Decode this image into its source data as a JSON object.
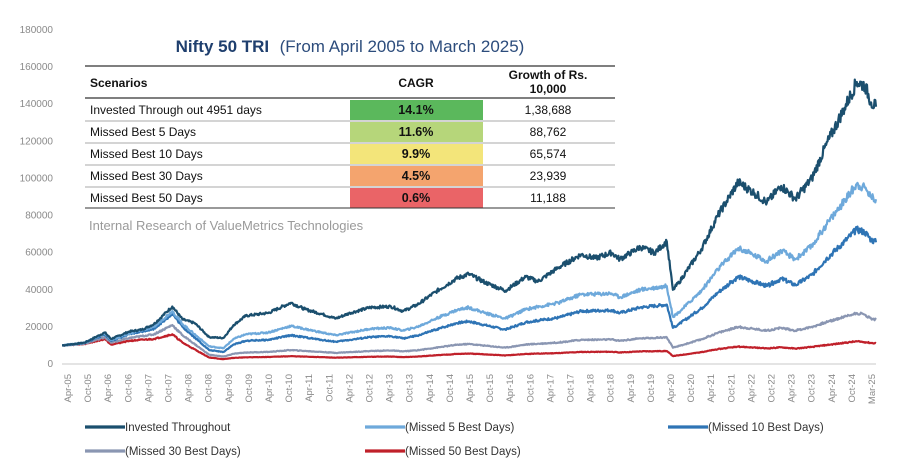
{
  "chart_data": {
    "type": "line",
    "title_main": "Nifty 50 TRI",
    "title_sub": "(From April 2005 to March 2025)",
    "ylim": [
      0,
      180000
    ],
    "yticks": [
      "0",
      "20000",
      "40000",
      "60000",
      "80000",
      "100000",
      "120000",
      "140000",
      "160000",
      "180000"
    ],
    "ytick_values": [
      0,
      20000,
      40000,
      60000,
      80000,
      100000,
      120000,
      140000,
      160000,
      180000
    ],
    "xtick_labels": [
      "Apr-05",
      "Oct-05",
      "Apr-06",
      "Oct-06",
      "Apr-07",
      "Oct-07",
      "Apr-08",
      "Oct-08",
      "Apr-09",
      "Oct-09",
      "Apr-10",
      "Oct-10",
      "Apr-11",
      "Oct-11",
      "Apr-12",
      "Oct-12",
      "Apr-13",
      "Oct-13",
      "Apr-14",
      "Oct-14",
      "Apr-15",
      "Oct-15",
      "Apr-16",
      "Oct-16",
      "Apr-17",
      "Oct-17",
      "Apr-18",
      "Oct-18",
      "Apr-19",
      "Oct-19",
      "Apr-20",
      "Oct-20",
      "Apr-21",
      "Oct-21",
      "Apr-22",
      "Oct-22",
      "Apr-23",
      "Oct-23",
      "Apr-24",
      "Oct-24",
      "Mar-25"
    ],
    "x_years": [
      2005.25,
      2025.17
    ],
    "series": [
      {
        "name": "Invested Throughout",
        "color": "#1b4f6e",
        "points": [
          [
            2005.25,
            10000
          ],
          [
            2005.8,
            11500
          ],
          [
            2006.3,
            17000
          ],
          [
            2006.45,
            13500
          ],
          [
            2006.9,
            17500
          ],
          [
            2007.2,
            18500
          ],
          [
            2007.5,
            21500
          ],
          [
            2007.95,
            31000
          ],
          [
            2008.2,
            24000
          ],
          [
            2008.5,
            22000
          ],
          [
            2008.85,
            14500
          ],
          [
            2009.2,
            14000
          ],
          [
            2009.45,
            21000
          ],
          [
            2009.75,
            26000
          ],
          [
            2010.3,
            27500
          ],
          [
            2010.85,
            33000
          ],
          [
            2011.2,
            29500
          ],
          [
            2011.6,
            27000
          ],
          [
            2011.95,
            24500
          ],
          [
            2012.3,
            27500
          ],
          [
            2012.8,
            30500
          ],
          [
            2013.3,
            31000
          ],
          [
            2013.6,
            28500
          ],
          [
            2013.95,
            32000
          ],
          [
            2014.4,
            39000
          ],
          [
            2014.9,
            46000
          ],
          [
            2015.2,
            48500
          ],
          [
            2015.6,
            44000
          ],
          [
            2016.1,
            39500
          ],
          [
            2016.6,
            47000
          ],
          [
            2016.9,
            44500
          ],
          [
            2017.4,
            52000
          ],
          [
            2017.95,
            59000
          ],
          [
            2018.3,
            57000
          ],
          [
            2018.7,
            60000
          ],
          [
            2018.9,
            56500
          ],
          [
            2019.4,
            63000
          ],
          [
            2019.75,
            60000
          ],
          [
            2020.05,
            66000
          ],
          [
            2020.2,
            40000
          ],
          [
            2020.35,
            44000
          ],
          [
            2020.9,
            62000
          ],
          [
            2021.3,
            80000
          ],
          [
            2021.8,
            98000
          ],
          [
            2022.2,
            92000
          ],
          [
            2022.5,
            87000
          ],
          [
            2022.85,
            96000
          ],
          [
            2023.2,
            89000
          ],
          [
            2023.6,
            100000
          ],
          [
            2023.95,
            118000
          ],
          [
            2024.4,
            138000
          ],
          [
            2024.7,
            152000
          ],
          [
            2024.9,
            150000
          ],
          [
            2025.05,
            141000
          ],
          [
            2025.17,
            138688
          ]
        ]
      },
      {
        "name": "(Missed 5 Best Days)",
        "color": "#6ea9db",
        "points": [
          [
            2005.25,
            10000
          ],
          [
            2005.8,
            11500
          ],
          [
            2006.3,
            16500
          ],
          [
            2006.45,
            13000
          ],
          [
            2006.9,
            16500
          ],
          [
            2007.5,
            20000
          ],
          [
            2007.95,
            28500
          ],
          [
            2008.2,
            21500
          ],
          [
            2008.85,
            9500
          ],
          [
            2009.2,
            8500
          ],
          [
            2009.45,
            13500
          ],
          [
            2009.75,
            16000
          ],
          [
            2010.3,
            17000
          ],
          [
            2010.85,
            20500
          ],
          [
            2011.6,
            17000
          ],
          [
            2011.95,
            15500
          ],
          [
            2012.8,
            19000
          ],
          [
            2013.3,
            19500
          ],
          [
            2013.6,
            18000
          ],
          [
            2013.95,
            20000
          ],
          [
            2014.4,
            24500
          ],
          [
            2014.9,
            29000
          ],
          [
            2015.2,
            30500
          ],
          [
            2015.6,
            27500
          ],
          [
            2016.1,
            24500
          ],
          [
            2016.6,
            29500
          ],
          [
            2017.4,
            33000
          ],
          [
            2017.95,
            37500
          ],
          [
            2018.7,
            38000
          ],
          [
            2018.9,
            36000
          ],
          [
            2019.4,
            40000
          ],
          [
            2020.05,
            42000
          ],
          [
            2020.2,
            25500
          ],
          [
            2020.35,
            28000
          ],
          [
            2020.9,
            39500
          ],
          [
            2021.3,
            51000
          ],
          [
            2021.8,
            62500
          ],
          [
            2022.5,
            55500
          ],
          [
            2022.85,
            61000
          ],
          [
            2023.2,
            56500
          ],
          [
            2023.6,
            63500
          ],
          [
            2023.95,
            75000
          ],
          [
            2024.4,
            88000
          ],
          [
            2024.7,
            97000
          ],
          [
            2024.9,
            95000
          ],
          [
            2025.05,
            90000
          ],
          [
            2025.17,
            88762
          ]
        ]
      },
      {
        "name": "(Missed 10 Best Days)",
        "color": "#2e74b5",
        "points": [
          [
            2005.25,
            10000
          ],
          [
            2005.8,
            11300
          ],
          [
            2006.3,
            16000
          ],
          [
            2006.45,
            12500
          ],
          [
            2006.9,
            16000
          ],
          [
            2007.5,
            19000
          ],
          [
            2007.95,
            27000
          ],
          [
            2008.2,
            20000
          ],
          [
            2008.85,
            7500
          ],
          [
            2009.2,
            6500
          ],
          [
            2009.45,
            10500
          ],
          [
            2009.75,
            12500
          ],
          [
            2010.3,
            13000
          ],
          [
            2010.85,
            15500
          ],
          [
            2011.6,
            13000
          ],
          [
            2011.95,
            12000
          ],
          [
            2012.8,
            14500
          ],
          [
            2013.3,
            15000
          ],
          [
            2013.6,
            13800
          ],
          [
            2013.95,
            15300
          ],
          [
            2014.4,
            18500
          ],
          [
            2014.9,
            22000
          ],
          [
            2015.2,
            23000
          ],
          [
            2015.6,
            21000
          ],
          [
            2016.1,
            18500
          ],
          [
            2016.6,
            22500
          ],
          [
            2017.4,
            25000
          ],
          [
            2017.95,
            28500
          ],
          [
            2018.7,
            29000
          ],
          [
            2018.9,
            27500
          ],
          [
            2019.4,
            30500
          ],
          [
            2020.05,
            32000
          ],
          [
            2020.2,
            19500
          ],
          [
            2020.35,
            21500
          ],
          [
            2020.9,
            30000
          ],
          [
            2021.3,
            38500
          ],
          [
            2021.8,
            47000
          ],
          [
            2022.5,
            42000
          ],
          [
            2022.85,
            46000
          ],
          [
            2023.2,
            42500
          ],
          [
            2023.6,
            48000
          ],
          [
            2023.95,
            56500
          ],
          [
            2024.4,
            66000
          ],
          [
            2024.7,
            72500
          ],
          [
            2024.9,
            71000
          ],
          [
            2025.05,
            67000
          ],
          [
            2025.17,
            65574
          ]
        ]
      },
      {
        "name": "(Missed 30 Best Days)",
        "color": "#8a96b2",
        "points": [
          [
            2005.25,
            10000
          ],
          [
            2005.8,
            11000
          ],
          [
            2006.3,
            14500
          ],
          [
            2006.45,
            11500
          ],
          [
            2006.9,
            14000
          ],
          [
            2007.5,
            16000
          ],
          [
            2007.95,
            21000
          ],
          [
            2008.2,
            15500
          ],
          [
            2008.85,
            5000
          ],
          [
            2009.2,
            4000
          ],
          [
            2009.45,
            5500
          ],
          [
            2009.75,
            6200
          ],
          [
            2010.3,
            6500
          ],
          [
            2010.85,
            7500
          ],
          [
            2011.6,
            6500
          ],
          [
            2011.95,
            6000
          ],
          [
            2012.8,
            7000
          ],
          [
            2013.3,
            7300
          ],
          [
            2013.6,
            6800
          ],
          [
            2013.95,
            7400
          ],
          [
            2014.4,
            8800
          ],
          [
            2014.9,
            10300
          ],
          [
            2015.2,
            10800
          ],
          [
            2015.6,
            9900
          ],
          [
            2016.1,
            8800
          ],
          [
            2016.6,
            10500
          ],
          [
            2017.4,
            11600
          ],
          [
            2017.95,
            13000
          ],
          [
            2018.7,
            13200
          ],
          [
            2018.9,
            12500
          ],
          [
            2019.4,
            13800
          ],
          [
            2020.05,
            14400
          ],
          [
            2020.2,
            8800
          ],
          [
            2020.35,
            9700
          ],
          [
            2020.9,
            13300
          ],
          [
            2021.3,
            16800
          ],
          [
            2021.8,
            20000
          ],
          [
            2022.5,
            18000
          ],
          [
            2022.85,
            19500
          ],
          [
            2023.2,
            18000
          ],
          [
            2023.6,
            20000
          ],
          [
            2023.95,
            22500
          ],
          [
            2024.4,
            25500
          ],
          [
            2024.7,
            27500
          ],
          [
            2024.9,
            26500
          ],
          [
            2025.05,
            24500
          ],
          [
            2025.17,
            23939
          ]
        ]
      },
      {
        "name": "(Missed 50 Best Days)",
        "color": "#c0202a",
        "points": [
          [
            2005.25,
            10000
          ],
          [
            2005.8,
            10800
          ],
          [
            2006.3,
            13500
          ],
          [
            2006.45,
            10500
          ],
          [
            2006.9,
            12500
          ],
          [
            2007.5,
            13500
          ],
          [
            2007.95,
            16000
          ],
          [
            2008.2,
            11500
          ],
          [
            2008.85,
            3500
          ],
          [
            2009.2,
            2600
          ],
          [
            2009.45,
            3300
          ],
          [
            2009.75,
            3600
          ],
          [
            2010.3,
            3800
          ],
          [
            2010.85,
            4200
          ],
          [
            2011.6,
            3700
          ],
          [
            2011.95,
            3400
          ],
          [
            2012.8,
            3900
          ],
          [
            2013.3,
            4000
          ],
          [
            2013.6,
            3700
          ],
          [
            2013.95,
            4000
          ],
          [
            2014.4,
            4700
          ],
          [
            2014.9,
            5400
          ],
          [
            2015.2,
            5600
          ],
          [
            2015.6,
            5200
          ],
          [
            2016.1,
            4600
          ],
          [
            2016.6,
            5400
          ],
          [
            2017.4,
            5900
          ],
          [
            2017.95,
            6500
          ],
          [
            2018.7,
            6600
          ],
          [
            2018.9,
            6200
          ],
          [
            2019.4,
            6800
          ],
          [
            2020.05,
            7000
          ],
          [
            2020.2,
            4300
          ],
          [
            2020.35,
            4700
          ],
          [
            2020.9,
            6400
          ],
          [
            2021.3,
            8000
          ],
          [
            2021.8,
            9400
          ],
          [
            2022.5,
            8400
          ],
          [
            2022.85,
            9000
          ],
          [
            2023.2,
            8300
          ],
          [
            2023.6,
            9200
          ],
          [
            2023.95,
            10200
          ],
          [
            2024.4,
            11400
          ],
          [
            2024.7,
            12200
          ],
          [
            2024.9,
            11800
          ],
          [
            2025.05,
            11300
          ],
          [
            2025.17,
            11188
          ]
        ]
      }
    ],
    "legend": [
      {
        "label": "Invested Throughout",
        "color": "#1b4f6e"
      },
      {
        "label": "(Missed 5 Best Days)",
        "color": "#6ea9db"
      },
      {
        "label": "(Missed 10 Best Days)",
        "color": "#2e74b5"
      },
      {
        "label": "(Missed 30 Best Days)",
        "color": "#8a96b2"
      },
      {
        "label": "(Missed 50 Best Days)",
        "color": "#c0202a"
      }
    ],
    "table": {
      "headers": [
        "Scenarios",
        "CAGR",
        "Growth of Rs.",
        "10,000"
      ],
      "rows": [
        {
          "scenario": "Invested Through out 4951 days",
          "cagr": "14.1%",
          "growth": "1,38,688",
          "color": "#5bb85c"
        },
        {
          "scenario": "Missed Best 5 Days",
          "cagr": "11.6%",
          "growth": "88,762",
          "color": "#b6d67a"
        },
        {
          "scenario": "Missed Best 10 Days",
          "cagr": "9.9%",
          "growth": "65,574",
          "color": "#f3e57a"
        },
        {
          "scenario": "Missed Best 30 Days",
          "cagr": "4.5%",
          "growth": "23,939",
          "color": "#f4a46e"
        },
        {
          "scenario": "Missed Best 50 Days",
          "cagr": "0.6%",
          "growth": "11,188",
          "color": "#ea6467"
        }
      ]
    },
    "watermark": "Internal Research of ValueMetrics Technologies"
  }
}
